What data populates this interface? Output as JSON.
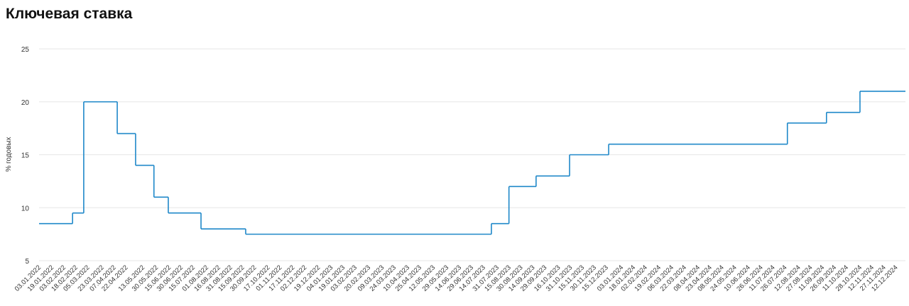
{
  "chart_data": {
    "type": "step",
    "title": "Ключевая ставка",
    "y_label": "% годовых",
    "color": "#1f88c9",
    "x": [
      "03.01.2022",
      "14.02.2022",
      "28.02.2022",
      "11.04.2022",
      "04.05.2022",
      "27.05.2022",
      "14.06.2022",
      "25.07.2022",
      "19.09.2022",
      "24.07.2023",
      "15.08.2023",
      "18.09.2023",
      "30.10.2023",
      "18.12.2023",
      "29.07.2024",
      "16.09.2024",
      "28.10.2024"
    ],
    "values": [
      8.5,
      9.5,
      20,
      17,
      14,
      11,
      9.5,
      8,
      7.5,
      8.5,
      12,
      13,
      15,
      16,
      18,
      19,
      21
    ],
    "xlim": [
      "03.01.2022",
      "24.12.2024"
    ],
    "xticks": [
      "03.01.2022",
      "19.01.2022",
      "03.02.2022",
      "18.02.2022",
      "05.03.2022",
      "23.03.2022",
      "07.04.2022",
      "22.04.2022",
      "13.05.2022",
      "30.05.2022",
      "15.06.2022",
      "30.06.2022",
      "15.07.2022",
      "01.08.2022",
      "16.08.2022",
      "31.08.2022",
      "15.09.2022",
      "30.09.2022",
      "17.10.2022",
      "01.11.2022",
      "17.11.2022",
      "02.12.2022",
      "19.12.2022",
      "04.01.2023",
      "19.01.2023",
      "03.02.2023",
      "20.02.2023",
      "09.03.2023",
      "24.03.2023",
      "10.04.2023",
      "25.04.2023",
      "12.05.2023",
      "29.05.2023",
      "14.06.2023",
      "29.06.2023",
      "14.07.2023",
      "31.07.2023",
      "15.08.2023",
      "30.08.2023",
      "14.09.2023",
      "29.09.2023",
      "16.10.2023",
      "31.10.2023",
      "15.11.2023",
      "30.11.2023",
      "15.12.2023",
      "03.01.2024",
      "18.01.2024",
      "02.02.2024",
      "19.02.2024",
      "06.03.2024",
      "22.03.2024",
      "08.04.2024",
      "23.04.2024",
      "08.05.2024",
      "24.05.2024",
      "10.06.2024",
      "26.06.2024",
      "11.07.2024",
      "26.07.2024",
      "12.08.2024",
      "27.08.2024",
      "11.09.2024",
      "26.09.2024",
      "11.10.2024",
      "28.10.2024",
      "12.11.2024",
      "27.11.2024",
      "12.12.2024"
    ],
    "ylim": [
      5,
      25
    ],
    "yticks": [
      5,
      10,
      15,
      20,
      25
    ],
    "grid": true
  }
}
